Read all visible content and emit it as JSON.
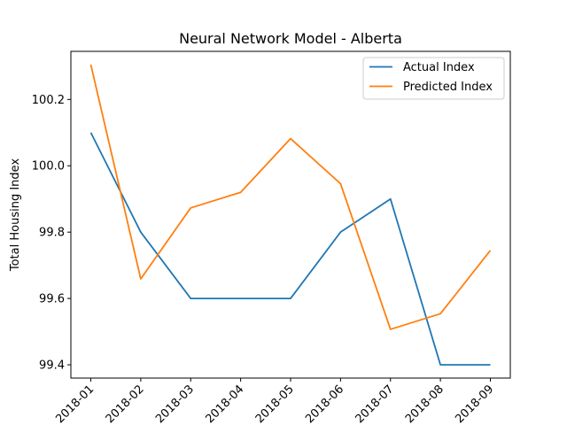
{
  "chart_data": {
    "type": "line",
    "title": "Neural Network Model - Alberta",
    "xlabel": "",
    "ylabel": "Total Housing Index",
    "categories": [
      "2018-01",
      "2018-02",
      "2018-03",
      "2018-04",
      "2018-05",
      "2018-06",
      "2018-07",
      "2018-08",
      "2018-09"
    ],
    "series": [
      {
        "name": "Actual Index",
        "color": "#1f77b4",
        "values": [
          100.1,
          99.8,
          99.6,
          99.6,
          99.6,
          99.8,
          99.9,
          99.4,
          99.4
        ]
      },
      {
        "name": "Predicted Index",
        "color": "#ff7f0e",
        "values": [
          100.305,
          99.659,
          99.873,
          99.92,
          100.082,
          99.946,
          99.507,
          99.554,
          99.745
        ]
      }
    ],
    "ylim": [
      99.36,
      100.345
    ],
    "yticks": [
      99.4,
      99.6,
      99.8,
      100.0,
      100.2
    ],
    "ytick_labels": [
      "99.4",
      "99.6",
      "99.8",
      "100.0",
      "100.2"
    ],
    "grid": false,
    "legend_position": "top-right"
  }
}
